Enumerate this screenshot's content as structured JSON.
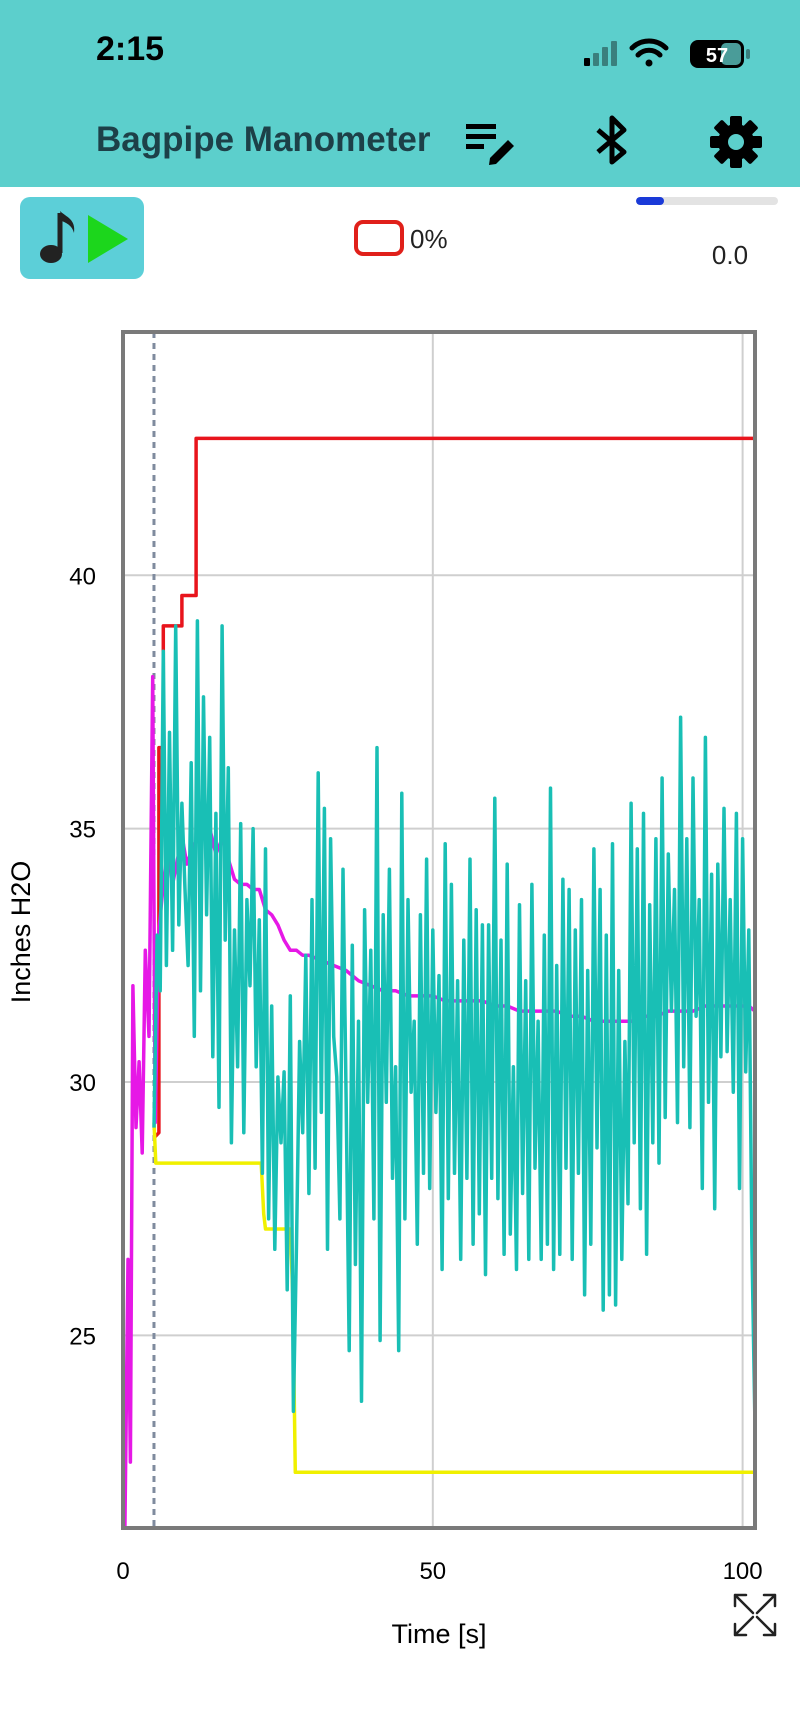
{
  "status_bar": {
    "time": "2:15",
    "battery_level": "57"
  },
  "app_bar": {
    "title": "Bagpipe Manometer",
    "background_color": "#5ccfcc",
    "icons": [
      "list-edit-icon",
      "bluetooth-icon",
      "settings-icon"
    ]
  },
  "controls": {
    "play_button_icons": [
      "music-note-icon",
      "play-icon"
    ],
    "battery_percent": "0%",
    "battery_outline_color": "#e0201a",
    "progress_fraction": 0.2,
    "progress_value": "0.0"
  },
  "chart_data": {
    "type": "line",
    "xlabel": "Time [s]",
    "ylabel": "Inches H2O",
    "xlim": [
      0,
      102
    ],
    "ylim": [
      21.2,
      44.8
    ],
    "x_ticks": [
      0,
      50,
      100
    ],
    "y_ticks": [
      25,
      30,
      35,
      40
    ],
    "grid": true,
    "marker_x": 5,
    "series": [
      {
        "color": "#e8141c",
        "points": [
          [
            5,
            28.9
          ],
          [
            5.8,
            29
          ],
          [
            5.8,
            36.6
          ],
          [
            6.5,
            36.6
          ],
          [
            6.5,
            39
          ],
          [
            9.5,
            39
          ],
          [
            9.5,
            39.6
          ],
          [
            11.8,
            39.6
          ],
          [
            11.8,
            42.7
          ],
          [
            102,
            42.7
          ]
        ]
      },
      {
        "color": "#f0f000",
        "points": [
          [
            5,
            29.2
          ],
          [
            5.3,
            28.4
          ],
          [
            22.3,
            28.4
          ],
          [
            22.7,
            27.4
          ],
          [
            23,
            27.1
          ],
          [
            27,
            27.1
          ],
          [
            27.4,
            25.8
          ],
          [
            27.8,
            22.3
          ],
          [
            102,
            22.3
          ]
        ]
      },
      {
        "color": "#e618e6",
        "points": [
          [
            0.3,
            21.2
          ],
          [
            0.8,
            26.5
          ],
          [
            1.2,
            22.5
          ],
          [
            1.6,
            31.9
          ],
          [
            2.1,
            29.1
          ],
          [
            2.6,
            30.4
          ],
          [
            3.1,
            28.6
          ],
          [
            3.6,
            32.6
          ],
          [
            4.2,
            30.9
          ],
          [
            4.8,
            38
          ],
          [
            5.2,
            29.2
          ],
          [
            5.8,
            33
          ],
          [
            6.5,
            33.9
          ],
          [
            7.2,
            34.6
          ],
          [
            8,
            33.9
          ],
          [
            8.8,
            34.4
          ],
          [
            9.6,
            34.8
          ],
          [
            10.3,
            34.3
          ],
          [
            11.2,
            34.6
          ],
          [
            12,
            34.8
          ],
          [
            13,
            34.8
          ],
          [
            14,
            35
          ],
          [
            15,
            34.5
          ],
          [
            16,
            34.8
          ],
          [
            17,
            34.4
          ],
          [
            18,
            34
          ],
          [
            19,
            33.9
          ],
          [
            20,
            33.9
          ],
          [
            21,
            33.8
          ],
          [
            22,
            33.8
          ],
          [
            23,
            33.4
          ],
          [
            24,
            33.3
          ],
          [
            25,
            33.1
          ],
          [
            26,
            32.8
          ],
          [
            27,
            32.6
          ],
          [
            28,
            32.6
          ],
          [
            29,
            32.5
          ],
          [
            30,
            32.5
          ],
          [
            32,
            32.4
          ],
          [
            34,
            32.3
          ],
          [
            36,
            32.2
          ],
          [
            38,
            32
          ],
          [
            40,
            31.9
          ],
          [
            42,
            31.8
          ],
          [
            44,
            31.8
          ],
          [
            46,
            31.7
          ],
          [
            48,
            31.7
          ],
          [
            50,
            31.7
          ],
          [
            52,
            31.6
          ],
          [
            54,
            31.6
          ],
          [
            56,
            31.6
          ],
          [
            58,
            31.6
          ],
          [
            60,
            31.5
          ],
          [
            62,
            31.5
          ],
          [
            64,
            31.4
          ],
          [
            66,
            31.4
          ],
          [
            68,
            31.4
          ],
          [
            70,
            31.4
          ],
          [
            72,
            31.3
          ],
          [
            74,
            31.3
          ],
          [
            76,
            31.2
          ],
          [
            78,
            31.2
          ],
          [
            80,
            31.2
          ],
          [
            82,
            31.2
          ],
          [
            84,
            31.3
          ],
          [
            86,
            31.3
          ],
          [
            88,
            31.4
          ],
          [
            90,
            31.4
          ],
          [
            92,
            31.4
          ],
          [
            94,
            31.5
          ],
          [
            96,
            31.5
          ],
          [
            98,
            31.5
          ],
          [
            100,
            31.5
          ],
          [
            101,
            31.5
          ],
          [
            102,
            31.4
          ]
        ]
      },
      {
        "color": "#19bfb5",
        "points": [
          [
            5,
            29.1
          ],
          [
            5.5,
            32.9
          ],
          [
            6,
            31.8
          ],
          [
            6.5,
            38.5
          ],
          [
            7,
            32.3
          ],
          [
            7.5,
            36.9
          ],
          [
            8,
            32.6
          ],
          [
            8.5,
            39
          ],
          [
            9,
            33.1
          ],
          [
            9.5,
            35.5
          ],
          [
            10,
            33.8
          ],
          [
            10.5,
            32.3
          ],
          [
            11,
            36.3
          ],
          [
            11.5,
            30.9
          ],
          [
            12,
            39.1
          ],
          [
            12.5,
            31.8
          ],
          [
            13,
            37.6
          ],
          [
            13.5,
            33.3
          ],
          [
            14,
            36.8
          ],
          [
            14.5,
            30.5
          ],
          [
            15,
            35.3
          ],
          [
            15.5,
            29.5
          ],
          [
            16,
            39
          ],
          [
            16.5,
            32.8
          ],
          [
            17,
            36.2
          ],
          [
            17.5,
            28.8
          ],
          [
            18,
            33
          ],
          [
            18.5,
            30.3
          ],
          [
            19,
            35.1
          ],
          [
            19.5,
            29
          ],
          [
            20,
            33.6
          ],
          [
            20.5,
            31.9
          ],
          [
            21,
            35
          ],
          [
            21.5,
            30.3
          ],
          [
            22,
            33.2
          ],
          [
            22.5,
            28.2
          ],
          [
            23,
            34.6
          ],
          [
            23.5,
            27.3
          ],
          [
            24,
            31.5
          ],
          [
            24.5,
            26.7
          ],
          [
            25,
            30.1
          ],
          [
            25.5,
            28.8
          ],
          [
            26,
            30.2
          ],
          [
            26.5,
            25.9
          ],
          [
            27,
            31.7
          ],
          [
            27.5,
            23.5
          ],
          [
            28,
            26.8
          ],
          [
            28.5,
            30.8
          ],
          [
            29,
            29
          ],
          [
            29.5,
            32.5
          ],
          [
            30,
            27.8
          ],
          [
            30.5,
            33.6
          ],
          [
            31,
            28.3
          ],
          [
            31.5,
            36.1
          ],
          [
            32,
            29.4
          ],
          [
            32.5,
            35.4
          ],
          [
            33,
            26.7
          ],
          [
            33.5,
            34.8
          ],
          [
            34,
            30.9
          ],
          [
            34.5,
            30.1
          ],
          [
            35,
            27.3
          ],
          [
            35.5,
            34.2
          ],
          [
            36,
            29.7
          ],
          [
            36.5,
            24.7
          ],
          [
            37,
            32.7
          ],
          [
            37.5,
            26.4
          ],
          [
            38,
            31.2
          ],
          [
            38.5,
            23.7
          ],
          [
            39,
            33.4
          ],
          [
            39.5,
            29.6
          ],
          [
            40,
            32.6
          ],
          [
            40.5,
            27.3
          ],
          [
            41,
            36.6
          ],
          [
            41.5,
            24.9
          ],
          [
            42,
            33.3
          ],
          [
            42.5,
            29.6
          ],
          [
            43,
            34.2
          ],
          [
            43.5,
            28.1
          ],
          [
            44,
            30.3
          ],
          [
            44.5,
            24.7
          ],
          [
            45,
            35.7
          ],
          [
            45.5,
            27.3
          ],
          [
            46,
            33.6
          ],
          [
            46.5,
            29.8
          ],
          [
            47,
            31.2
          ],
          [
            47.5,
            26.8
          ],
          [
            48,
            33.3
          ],
          [
            48.5,
            28.2
          ],
          [
            49,
            34.4
          ],
          [
            49.5,
            27.9
          ],
          [
            50,
            33
          ],
          [
            50.5,
            29.4
          ],
          [
            51,
            32.1
          ],
          [
            51.5,
            26.3
          ],
          [
            52,
            34.7
          ],
          [
            52.5,
            27.7
          ],
          [
            53,
            33.9
          ],
          [
            53.5,
            28.2
          ],
          [
            54,
            32
          ],
          [
            54.5,
            26.5
          ],
          [
            55,
            32.8
          ],
          [
            55.5,
            28.1
          ],
          [
            56,
            34.4
          ],
          [
            56.5,
            26.8
          ],
          [
            57,
            33.4
          ],
          [
            57.5,
            27.4
          ],
          [
            58,
            33.1
          ],
          [
            58.5,
            26.2
          ],
          [
            59,
            33.1
          ],
          [
            59.5,
            28.1
          ],
          [
            60,
            35.6
          ],
          [
            60.5,
            27.7
          ],
          [
            61,
            32.8
          ],
          [
            61.5,
            26.6
          ],
          [
            62,
            34.3
          ],
          [
            62.5,
            27
          ],
          [
            63,
            30.3
          ],
          [
            63.5,
            26.3
          ],
          [
            64,
            33.5
          ],
          [
            64.5,
            27.8
          ],
          [
            65,
            32
          ],
          [
            65.5,
            26.5
          ],
          [
            66,
            33.9
          ],
          [
            66.5,
            28.3
          ],
          [
            67,
            31.2
          ],
          [
            67.5,
            26.5
          ],
          [
            68,
            32.9
          ],
          [
            68.5,
            26.8
          ],
          [
            69,
            35.8
          ],
          [
            69.5,
            26.3
          ],
          [
            70,
            32.3
          ],
          [
            70.5,
            26.6
          ],
          [
            71,
            34
          ],
          [
            71.5,
            28.3
          ],
          [
            72,
            33.8
          ],
          [
            72.5,
            26.5
          ],
          [
            73,
            33
          ],
          [
            73.5,
            28.2
          ],
          [
            74,
            33.6
          ],
          [
            74.5,
            25.8
          ],
          [
            75,
            32.2
          ],
          [
            75.5,
            26.8
          ],
          [
            76,
            34.6
          ],
          [
            76.5,
            28.7
          ],
          [
            77,
            33.8
          ],
          [
            77.5,
            25.5
          ],
          [
            78,
            32.9
          ],
          [
            78.5,
            25.8
          ],
          [
            79,
            34.7
          ],
          [
            79.5,
            25.6
          ],
          [
            80,
            32.2
          ],
          [
            80.5,
            26.5
          ],
          [
            81,
            30.8
          ],
          [
            81.5,
            27.6
          ],
          [
            82,
            35.5
          ],
          [
            82.5,
            28.8
          ],
          [
            83,
            34.6
          ],
          [
            83.5,
            27.5
          ],
          [
            84,
            35.3
          ],
          [
            84.5,
            26.6
          ],
          [
            85,
            33.5
          ],
          [
            85.5,
            28.8
          ],
          [
            86,
            34.8
          ],
          [
            86.5,
            28.4
          ],
          [
            87,
            36
          ],
          [
            87.5,
            29.3
          ],
          [
            88,
            34.5
          ],
          [
            88.5,
            31.4
          ],
          [
            89,
            33.8
          ],
          [
            89.5,
            29.2
          ],
          [
            90,
            37.2
          ],
          [
            90.5,
            30.3
          ],
          [
            91,
            34.8
          ],
          [
            91.5,
            29.1
          ],
          [
            92,
            36
          ],
          [
            92.5,
            31.3
          ],
          [
            93,
            33.6
          ],
          [
            93.5,
            27.9
          ],
          [
            94,
            36.8
          ],
          [
            94.5,
            29.6
          ],
          [
            95,
            34.1
          ],
          [
            95.5,
            27.5
          ],
          [
            96,
            34.3
          ],
          [
            96.5,
            30.5
          ],
          [
            97,
            35.4
          ],
          [
            97.5,
            30.6
          ],
          [
            98,
            33.6
          ],
          [
            98.5,
            29.8
          ],
          [
            99,
            35.3
          ],
          [
            99.5,
            27.9
          ],
          [
            100,
            34.8
          ],
          [
            100.5,
            30.2
          ],
          [
            101,
            33
          ],
          [
            101.5,
            26.8
          ],
          [
            102,
            23.2
          ]
        ]
      }
    ]
  }
}
